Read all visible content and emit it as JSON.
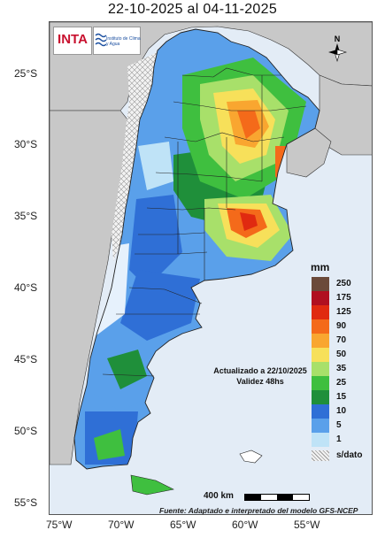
{
  "title": "22-10-2025 al 04-11-2025",
  "logos": {
    "inta": "INTA",
    "clima": "Instituto de Clima y Agua"
  },
  "north_label": "N",
  "lat_labels": [
    "25°S",
    "30°S",
    "35°S",
    "40°S",
    "45°S",
    "50°S",
    "55°S"
  ],
  "lon_labels": [
    "75°W",
    "70°W",
    "65°W",
    "60°W",
    "55°W"
  ],
  "note": {
    "line1": "Actualizado a 22/10/2025",
    "line2": "Validez 48hs"
  },
  "legend": {
    "unit": "mm",
    "items": [
      {
        "label": "250",
        "color": "#6b4a3a"
      },
      {
        "label": "175",
        "color": "#b01020"
      },
      {
        "label": "125",
        "color": "#e02a10"
      },
      {
        "label": "90",
        "color": "#f46a1a"
      },
      {
        "label": "70",
        "color": "#f9a630"
      },
      {
        "label": "50",
        "color": "#f7e05a"
      },
      {
        "label": "35",
        "color": "#a8e06a"
      },
      {
        "label": "25",
        "color": "#3fbf3f"
      },
      {
        "label": "15",
        "color": "#1f8f3a"
      },
      {
        "label": "10",
        "color": "#2f6fd6"
      },
      {
        "label": "5",
        "color": "#5aa0ea"
      },
      {
        "label": "1",
        "color": "#bfe3f7"
      }
    ],
    "nodata_label": "s/dato"
  },
  "scale": {
    "label": "400 km"
  },
  "source": "Fuente: Adaptado e interpretado del modelo GFS-NCEP"
}
